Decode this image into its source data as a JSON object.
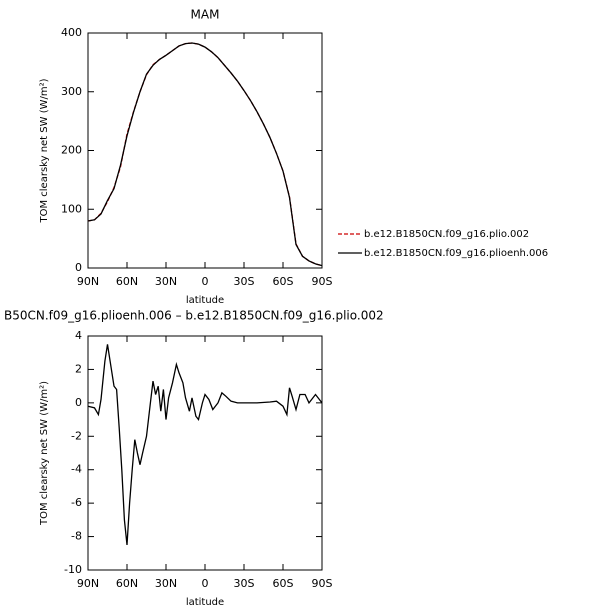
{
  "chart_data": [
    {
      "type": "line",
      "title": "MAM",
      "y_label": "TOM clearsky net SW (W/m²)",
      "x_label": "latitude",
      "x": [
        90,
        85,
        80,
        75,
        70,
        65,
        60,
        55,
        50,
        45,
        40,
        35,
        30,
        25,
        20,
        15,
        10,
        5,
        0,
        -5,
        -10,
        -15,
        -20,
        -25,
        -30,
        -35,
        -40,
        -45,
        -50,
        -55,
        -60,
        -65,
        -70,
        -75,
        -80,
        -85,
        -90
      ],
      "series": [
        {
          "name": "b.e12.B1850CN.f09_g16.plio.002",
          "color": "#cc0000",
          "dashed": true,
          "values": [
            80,
            82,
            93,
            113,
            137,
            172,
            228,
            266,
            300,
            329,
            346,
            355,
            362,
            370,
            378,
            382,
            383,
            381,
            376,
            368,
            358,
            345,
            332,
            318,
            302,
            285,
            266,
            245,
            222,
            195,
            165,
            121,
            41,
            20,
            12,
            7,
            4
          ]
        },
        {
          "name": "b.e12.B1850CN.f09_g16.plioenh.006",
          "color": "#000000",
          "dashed": false,
          "values": [
            80,
            82,
            92,
            115,
            135,
            175,
            225,
            265,
            300,
            330,
            345,
            355,
            362,
            370,
            378,
            382,
            383,
            381,
            376,
            368,
            358,
            345,
            332,
            318,
            302,
            285,
            266,
            245,
            222,
            195,
            165,
            120,
            40,
            20,
            12,
            7,
            4
          ]
        }
      ],
      "xlim": [
        90,
        -90
      ],
      "xticks": [
        {
          "value": 90,
          "label": "90N"
        },
        {
          "value": 60,
          "label": "60N"
        },
        {
          "value": 30,
          "label": "30N"
        },
        0,
        {
          "value": -30,
          "label": "30S"
        },
        {
          "value": -60,
          "label": "60S"
        },
        {
          "value": -90,
          "label": "90S"
        }
      ],
      "ylim": [
        0,
        400
      ],
      "yticks": [
        0,
        100,
        200,
        300,
        400
      ],
      "legend": "right"
    },
    {
      "type": "line",
      "title": "B50CN.f09_g16.plioenh.006 – b.e12.B1850CN.f09_g16.plio.002",
      "y_label": "TOM clearsky net SW (W/m²)",
      "x_label": "latitude",
      "x": [
        90,
        85,
        82,
        80,
        77,
        75,
        72,
        70,
        68,
        66,
        64,
        62,
        60,
        58,
        56,
        54,
        52,
        50,
        48,
        45,
        42,
        40,
        38,
        36,
        34,
        32,
        30,
        28,
        25,
        22,
        20,
        17,
        15,
        12,
        10,
        7,
        5,
        2,
        0,
        -3,
        -6,
        -10,
        -13,
        -16,
        -20,
        -25,
        -30,
        -40,
        -50,
        -55,
        -60,
        -63,
        -65,
        -67,
        -70,
        -73,
        -77,
        -80,
        -85,
        -90
      ],
      "color": "#000000",
      "values": [
        -0.2,
        -0.3,
        -0.7,
        0.2,
        2.5,
        3.5,
        2.0,
        1.0,
        0.8,
        -1.5,
        -4,
        -7,
        -8.5,
        -6,
        -4,
        -2.2,
        -3,
        -3.7,
        -3,
        -2,
        0,
        1.3,
        0.5,
        1.0,
        -0.5,
        0.8,
        -1,
        0.3,
        1.2,
        2.3,
        1.8,
        1.2,
        0.3,
        -0.5,
        0.3,
        -0.8,
        -1.0,
        0.0,
        0.5,
        0.2,
        -0.4,
        0.0,
        0.6,
        0.4,
        0.1,
        0.0,
        0.0,
        0.0,
        0.05,
        0.1,
        -0.2,
        -0.7,
        0.9,
        0.4,
        -0.4,
        0.5,
        0.5,
        0.0,
        0.5,
        0.0
      ],
      "xlim": [
        90,
        -90
      ],
      "xticks": [
        {
          "value": 90,
          "label": "90N"
        },
        {
          "value": 60,
          "label": "60N"
        },
        {
          "value": 30,
          "label": "30N"
        },
        0,
        {
          "value": -30,
          "label": "30S"
        },
        {
          "value": -60,
          "label": "60S"
        },
        {
          "value": -90,
          "label": "90S"
        }
      ],
      "ylim": [
        -10,
        4
      ],
      "yticks": [
        -10,
        -8,
        -6,
        -4,
        -2,
        0,
        2,
        4
      ]
    }
  ]
}
